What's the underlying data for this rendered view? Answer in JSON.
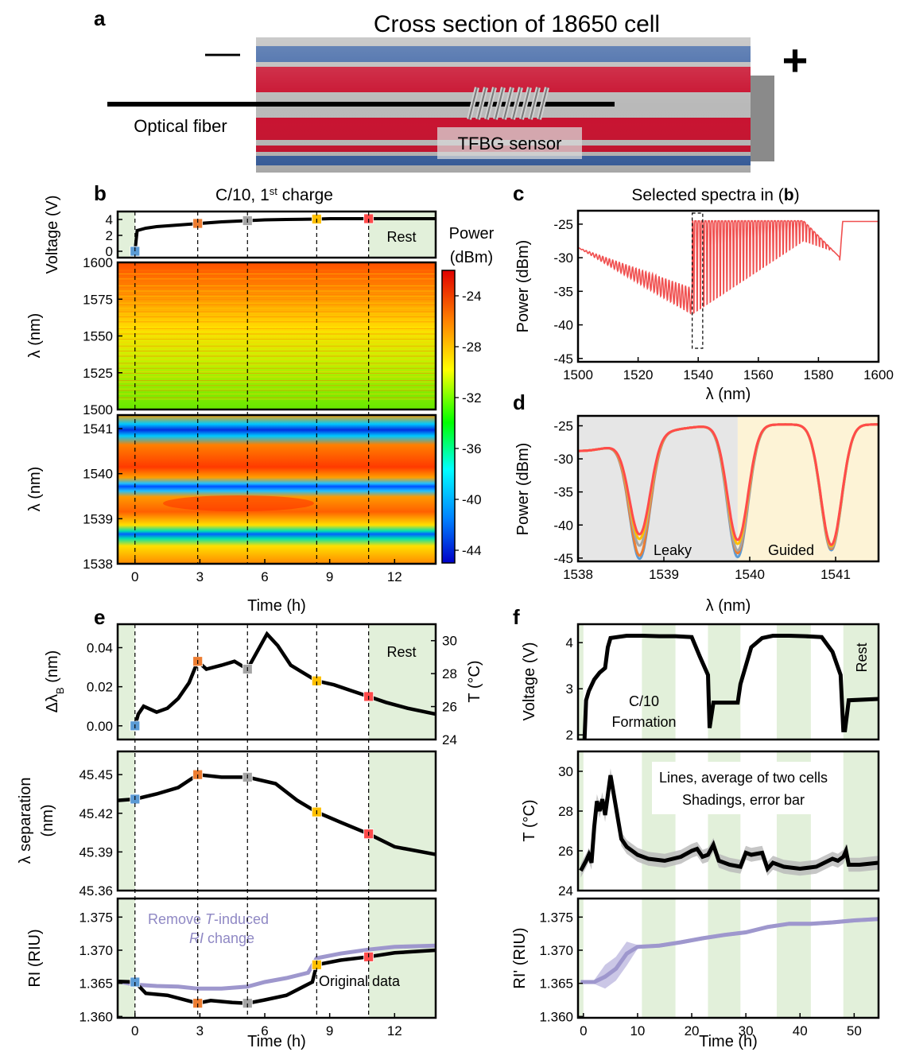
{
  "panel_labels": {
    "a": "a",
    "b": "b",
    "c": "c",
    "d": "d",
    "e": "e",
    "f": "f"
  },
  "panel_a": {
    "title": "Cross section of 18650 cell",
    "minus": "—",
    "plus": "+",
    "fiber_label": "Optical fiber",
    "sensor_label": "TFBG sensor",
    "colors": {
      "red": "#c8102e",
      "blue": "#3b62a3",
      "grey": "#9a9a9a"
    }
  },
  "chart_data": [
    {
      "id": "b-top",
      "type": "line",
      "title": "C/10, 1",
      "title_sup": "st",
      "title_end": " charge",
      "ylabel": "Voltage (V)",
      "annotation": "Rest",
      "xlim": [
        -0.8,
        13.9
      ],
      "ylim": [
        -0.8,
        5
      ],
      "yticks": [
        0,
        2,
        4
      ],
      "x": [
        0,
        0.1,
        0.5,
        1,
        2,
        3,
        4,
        5.2,
        6,
        7,
        8.4,
        9,
        10,
        10.8,
        12,
        13.9
      ],
      "y": [
        0.0,
        2.6,
        2.9,
        3.1,
        3.3,
        3.5,
        3.7,
        3.85,
        3.95,
        4.0,
        4.05,
        4.1,
        4.1,
        4.1,
        4.1,
        4.1
      ],
      "markers": [
        {
          "x": 0,
          "y": 0.0,
          "color": "#5b9bd5"
        },
        {
          "x": 2.9,
          "y": 3.5,
          "color": "#ed7d31"
        },
        {
          "x": 5.2,
          "y": 3.85,
          "color": "#a5a5a5"
        },
        {
          "x": 8.4,
          "y": 4.05,
          "color": "#ffc000"
        },
        {
          "x": 10.8,
          "y": 4.1,
          "color": "#ff4b4b"
        }
      ]
    },
    {
      "id": "b-map1",
      "type": "heatmap",
      "ylabel": "λ (nm)",
      "ylim": [
        1500,
        1600
      ],
      "yticks": [
        1500,
        1525,
        1550,
        1575,
        1600
      ]
    },
    {
      "id": "b-map2",
      "type": "heatmap",
      "ylabel": "λ (nm)",
      "xlabel": "Time (h)",
      "ylim": [
        1538,
        1541.3
      ],
      "yticks": [
        1538,
        1539,
        1540,
        1541
      ],
      "xticks": [
        0,
        3,
        6,
        9,
        12
      ],
      "colorbar": {
        "label_1": "Power",
        "label_2": "(dBm)",
        "ticks": [
          -24,
          -28,
          -32,
          -36,
          -40,
          -44
        ],
        "range": [
          -45,
          -22
        ]
      }
    },
    {
      "id": "c",
      "type": "line",
      "title": "Selected spectra in (",
      "title_bold": "b",
      "title_end": ")",
      "xlabel": "λ (nm)",
      "ylabel": "Power (dBm)",
      "xlim": [
        1500,
        1600
      ],
      "ylim": [
        -45.5,
        -23
      ],
      "xticks": [
        1500,
        1520,
        1540,
        1560,
        1580,
        1600
      ],
      "yticks": [
        -25,
        -30,
        -35,
        -40,
        -45
      ]
    },
    {
      "id": "d",
      "type": "line",
      "xlabel": "λ (nm)",
      "ylabel": "Power (dBm)",
      "xlim": [
        1538,
        1541.5
      ],
      "ylim": [
        -45.5,
        -23.5
      ],
      "xticks": [
        1538,
        1539,
        1540,
        1541
      ],
      "yticks": [
        -25,
        -30,
        -35,
        -40,
        -45
      ],
      "region_labels": [
        "Leaky",
        "Guided"
      ],
      "dips": [
        {
          "center": 1538.72,
          "depths": [
            -43.0,
            -42.5,
            -41.0,
            -40.0,
            -39.3
          ]
        },
        {
          "center": 1539.86,
          "depths": [
            -44.8,
            -44.2,
            -43.8,
            -42.8,
            -42.2
          ]
        },
        {
          "center": 1540.95,
          "depths": [
            -43.8,
            -43.6,
            -43.4,
            -43.2,
            -43.0
          ]
        }
      ],
      "series_colors": [
        "#5b9bd5",
        "#ed7d31",
        "#a5a5a5",
        "#ffc000",
        "#ff4b4b"
      ]
    },
    {
      "id": "e-top",
      "type": "line",
      "ylabel": "Δλ",
      "ylabel_sub": "B",
      "ylabel_end": " (nm)",
      "y2label": "T (°C)",
      "annotation": "Rest",
      "xlim": [
        -0.8,
        13.9
      ],
      "ylim": [
        -0.007,
        0.052
      ],
      "y2lim": [
        24,
        31
      ],
      "yticks": [
        0.0,
        0.02,
        0.04
      ],
      "ytick_labels": [
        "0.00",
        "0.02",
        "0.04"
      ],
      "y2ticks": [
        24,
        26,
        28,
        30
      ],
      "x": [
        0,
        0.15,
        0.4,
        1,
        1.5,
        2,
        2.5,
        2.9,
        3.3,
        4,
        4.6,
        5.2,
        5.6,
        6.1,
        6.6,
        7.2,
        8.4,
        9.2,
        10,
        10.8,
        11.6,
        12.6,
        13.9
      ],
      "y": [
        0.0,
        0.006,
        0.01,
        0.007,
        0.009,
        0.014,
        0.022,
        0.033,
        0.029,
        0.031,
        0.033,
        0.029,
        0.037,
        0.047,
        0.041,
        0.031,
        0.023,
        0.021,
        0.018,
        0.015,
        0.012,
        0.009,
        0.006
      ],
      "markers": [
        {
          "x": 0,
          "y": 0.0,
          "color": "#5b9bd5"
        },
        {
          "x": 2.9,
          "y": 0.033,
          "color": "#ed7d31"
        },
        {
          "x": 5.2,
          "y": 0.029,
          "color": "#a5a5a5"
        },
        {
          "x": 8.4,
          "y": 0.023,
          "color": "#ffc000"
        },
        {
          "x": 10.8,
          "y": 0.015,
          "color": "#ff4b4b"
        }
      ]
    },
    {
      "id": "e-mid",
      "type": "line",
      "ylabel": "λ separation",
      "ylabel_2": "(nm)",
      "xlim": [
        -0.8,
        13.9
      ],
      "ylim": [
        45.36,
        45.468
      ],
      "yticks": [
        45.36,
        45.39,
        45.42,
        45.45
      ],
      "ytick_labels": [
        "45.36",
        "45.39",
        "45.42",
        "45.45"
      ],
      "x": [
        -0.8,
        0,
        1,
        2,
        2.9,
        4,
        5.2,
        6.5,
        7.5,
        8.4,
        9.5,
        10.8,
        12,
        13.9
      ],
      "y": [
        45.43,
        45.431,
        45.435,
        45.44,
        45.45,
        45.448,
        45.448,
        45.443,
        45.43,
        45.421,
        45.413,
        45.404,
        45.394,
        45.388
      ],
      "markers": [
        {
          "x": 0,
          "y": 45.431,
          "color": "#5b9bd5"
        },
        {
          "x": 2.9,
          "y": 45.45,
          "color": "#ed7d31"
        },
        {
          "x": 5.2,
          "y": 45.448,
          "color": "#a5a5a5"
        },
        {
          "x": 8.4,
          "y": 45.421,
          "color": "#ffc000"
        },
        {
          "x": 10.8,
          "y": 45.404,
          "color": "#ff4b4b"
        }
      ]
    },
    {
      "id": "e-bot",
      "type": "line",
      "ylabel": "RI (RIU)",
      "xlabel": "Time (h)",
      "xlim": [
        -0.8,
        13.9
      ],
      "ylim": [
        1.3598,
        1.3778
      ],
      "yticks": [
        1.36,
        1.365,
        1.37,
        1.375
      ],
      "ytick_labels": [
        "1.360",
        "1.365",
        "1.370",
        "1.375"
      ],
      "xticks": [
        0,
        3,
        6,
        9,
        12
      ],
      "series": [
        {
          "name": "Original data",
          "color": "#000000",
          "x": [
            -0.8,
            0,
            0.5,
            1.5,
            2.9,
            3.5,
            4.5,
            5.2,
            6,
            7,
            8.2,
            8.4,
            9.5,
            10.8,
            12,
            13.9
          ],
          "y": [
            1.3653,
            1.3652,
            1.3635,
            1.3632,
            1.362,
            1.3624,
            1.3621,
            1.362,
            1.3625,
            1.3632,
            1.3652,
            1.3678,
            1.3685,
            1.369,
            1.3696,
            1.37
          ]
        },
        {
          "name": "Remove T-induced RI change",
          "color": "#9e97cd",
          "x": [
            -0.8,
            0,
            1,
            2,
            2.9,
            4,
            5.2,
            6,
            7,
            8,
            8.4,
            9.5,
            10.8,
            12,
            13.9
          ],
          "y": [
            1.3653,
            1.3648,
            1.3646,
            1.3645,
            1.3642,
            1.3642,
            1.3645,
            1.3652,
            1.3658,
            1.3666,
            1.3688,
            1.3695,
            1.3701,
            1.3705,
            1.3707
          ]
        }
      ],
      "annotation_purple_1": "Remove ",
      "annotation_purple_T": "T",
      "annotation_purple_2": "-induced",
      "annotation_purple_RI": "RI",
      "annotation_purple_3": " change",
      "annotation_black": "Original data"
    },
    {
      "id": "f-top",
      "type": "line",
      "ylabel": "Voltage (V)",
      "annotation_1": "C/10",
      "annotation_2": "Formation",
      "annotation_rest": "Rest",
      "xlim": [
        -1,
        54.5
      ],
      "ylim": [
        1.9,
        4.4
      ],
      "yticks": [
        2,
        3,
        4
      ],
      "x": [
        0.2,
        0.5,
        1,
        2,
        3,
        4,
        4.5,
        5,
        8,
        11,
        14,
        17,
        20,
        21.5,
        23,
        23.3,
        24,
        28.5,
        29,
        30,
        31,
        33,
        35,
        38,
        41,
        44,
        46,
        47.5,
        48,
        48.3,
        49,
        54.5
      ],
      "y": [
        1.9,
        2.75,
        2.95,
        3.2,
        3.35,
        3.45,
        3.9,
        4.1,
        4.15,
        4.15,
        4.14,
        4.14,
        4.12,
        3.7,
        3.3,
        2.15,
        2.7,
        2.7,
        3.1,
        3.5,
        3.9,
        4.1,
        4.15,
        4.15,
        4.14,
        4.12,
        3.8,
        3.3,
        2.1,
        2.1,
        2.75,
        2.78
      ]
    },
    {
      "id": "f-mid",
      "type": "line",
      "ylabel": "T (°C)",
      "annotation_1": "Lines, average of two cells",
      "annotation_2": "Shadings, error bar",
      "xlim": [
        -1,
        54.5
      ],
      "ylim": [
        24,
        31
      ],
      "yticks": [
        24,
        26,
        28,
        30
      ],
      "x": [
        -0.5,
        0.5,
        1,
        1.5,
        2,
        2.5,
        3,
        3.5,
        4,
        4.5,
        5,
        6,
        7,
        8,
        10,
        12,
        15,
        18,
        20,
        21,
        22,
        23,
        24,
        25,
        27,
        29,
        30,
        31,
        33,
        34,
        35,
        37,
        40,
        43,
        46,
        47,
        48,
        48.5,
        49,
        51,
        54.5
      ],
      "y": [
        25.0,
        25.5,
        25.8,
        25.4,
        27.2,
        28.5,
        28.0,
        28.6,
        27.8,
        28.8,
        29.8,
        28.2,
        26.6,
        26.2,
        25.8,
        25.6,
        25.5,
        25.7,
        26.0,
        26.1,
        25.7,
        25.8,
        26.3,
        25.5,
        25.3,
        25.2,
        25.9,
        25.8,
        25.9,
        25.1,
        25.4,
        25.2,
        25.1,
        25.2,
        25.6,
        25.5,
        25.7,
        26.0,
        25.3,
        25.3,
        25.4
      ]
    },
    {
      "id": "f-bot",
      "type": "line",
      "ylabel": "RI' (RIU)",
      "xlabel": "Time (h)",
      "xlim": [
        -1,
        54.5
      ],
      "ylim": [
        1.3598,
        1.3778
      ],
      "yticks": [
        1.36,
        1.365,
        1.37,
        1.375
      ],
      "ytick_labels": [
        "1.360",
        "1.365",
        "1.370",
        "1.375"
      ],
      "xticks": [
        0,
        10,
        20,
        30,
        40,
        50
      ],
      "x": [
        -0.5,
        2,
        4,
        6,
        8,
        10,
        14,
        18,
        22,
        26,
        30,
        34,
        38,
        42,
        46,
        50,
        54.5
      ],
      "y": [
        1.3652,
        1.3652,
        1.366,
        1.3672,
        1.3695,
        1.3705,
        1.3707,
        1.3712,
        1.3718,
        1.3723,
        1.3727,
        1.3735,
        1.374,
        1.374,
        1.3742,
        1.3745,
        1.3747
      ],
      "rest_shading": [
        [
          10.8,
          17
        ],
        [
          23,
          29
        ],
        [
          35.7,
          42
        ],
        [
          48,
          54.5
        ]
      ]
    }
  ]
}
